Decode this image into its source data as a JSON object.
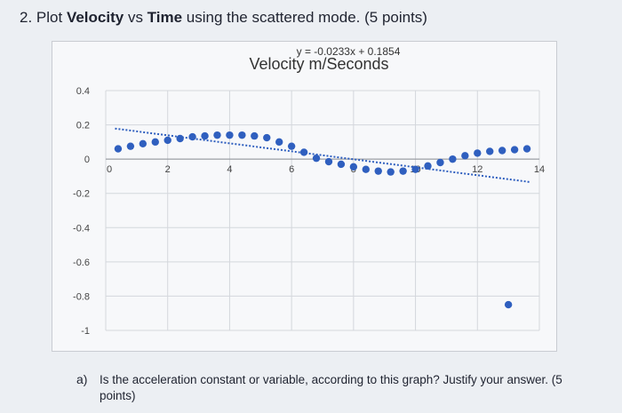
{
  "question": {
    "number": "2.",
    "prefix": "Plot ",
    "bold1": "Velocity",
    "mid1": " vs ",
    "bold2": "Time",
    "suffix": " using the scattered mode. (5 points)"
  },
  "chart_data": {
    "type": "scatter",
    "title": "Velocity m/Seconds",
    "trendline_equation": "y = -0.0233x + 0.1854",
    "trendline": {
      "slope": -0.0233,
      "intercept": 0.1854
    },
    "xlim": [
      0,
      14
    ],
    "ylim": [
      -1,
      0.4
    ],
    "x_ticks": [
      "0",
      "2",
      "4",
      "6",
      "8",
      "10",
      "12",
      "14"
    ],
    "y_ticks": [
      "0.4",
      "0.2",
      "0",
      "-0.2",
      "-0.4",
      "-0.6",
      "-0.8",
      "-1"
    ],
    "grid": true,
    "legend": "none",
    "marker_color": "#2f5fbf",
    "trend_color": "#2f5fbf",
    "points": [
      {
        "x": 0.4,
        "y": 0.06
      },
      {
        "x": 0.8,
        "y": 0.075
      },
      {
        "x": 1.2,
        "y": 0.09
      },
      {
        "x": 1.6,
        "y": 0.1
      },
      {
        "x": 2.0,
        "y": 0.11
      },
      {
        "x": 2.4,
        "y": 0.12
      },
      {
        "x": 2.8,
        "y": 0.13
      },
      {
        "x": 3.2,
        "y": 0.135
      },
      {
        "x": 3.6,
        "y": 0.14
      },
      {
        "x": 4.0,
        "y": 0.14
      },
      {
        "x": 4.4,
        "y": 0.14
      },
      {
        "x": 4.8,
        "y": 0.135
      },
      {
        "x": 5.2,
        "y": 0.125
      },
      {
        "x": 5.6,
        "y": 0.1
      },
      {
        "x": 6.0,
        "y": 0.075
      },
      {
        "x": 6.4,
        "y": 0.04
      },
      {
        "x": 6.8,
        "y": 0.005
      },
      {
        "x": 7.2,
        "y": -0.015
      },
      {
        "x": 7.6,
        "y": -0.03
      },
      {
        "x": 8.0,
        "y": -0.045
      },
      {
        "x": 8.4,
        "y": -0.06
      },
      {
        "x": 8.8,
        "y": -0.07
      },
      {
        "x": 9.2,
        "y": -0.075
      },
      {
        "x": 9.6,
        "y": -0.07
      },
      {
        "x": 10.0,
        "y": -0.06
      },
      {
        "x": 10.4,
        "y": -0.04
      },
      {
        "x": 10.8,
        "y": -0.02
      },
      {
        "x": 11.2,
        "y": 0.0
      },
      {
        "x": 11.6,
        "y": 0.02
      },
      {
        "x": 12.0,
        "y": 0.035
      },
      {
        "x": 12.4,
        "y": 0.045
      },
      {
        "x": 12.8,
        "y": 0.05
      },
      {
        "x": 13.2,
        "y": 0.055
      },
      {
        "x": 13.6,
        "y": 0.06
      },
      {
        "x": 13.0,
        "y": -0.85
      }
    ]
  },
  "sub_question": {
    "label": "a)",
    "text": "Is the acceleration constant or variable, according to this graph? Justify your answer. (5",
    "continuation": "points)"
  }
}
